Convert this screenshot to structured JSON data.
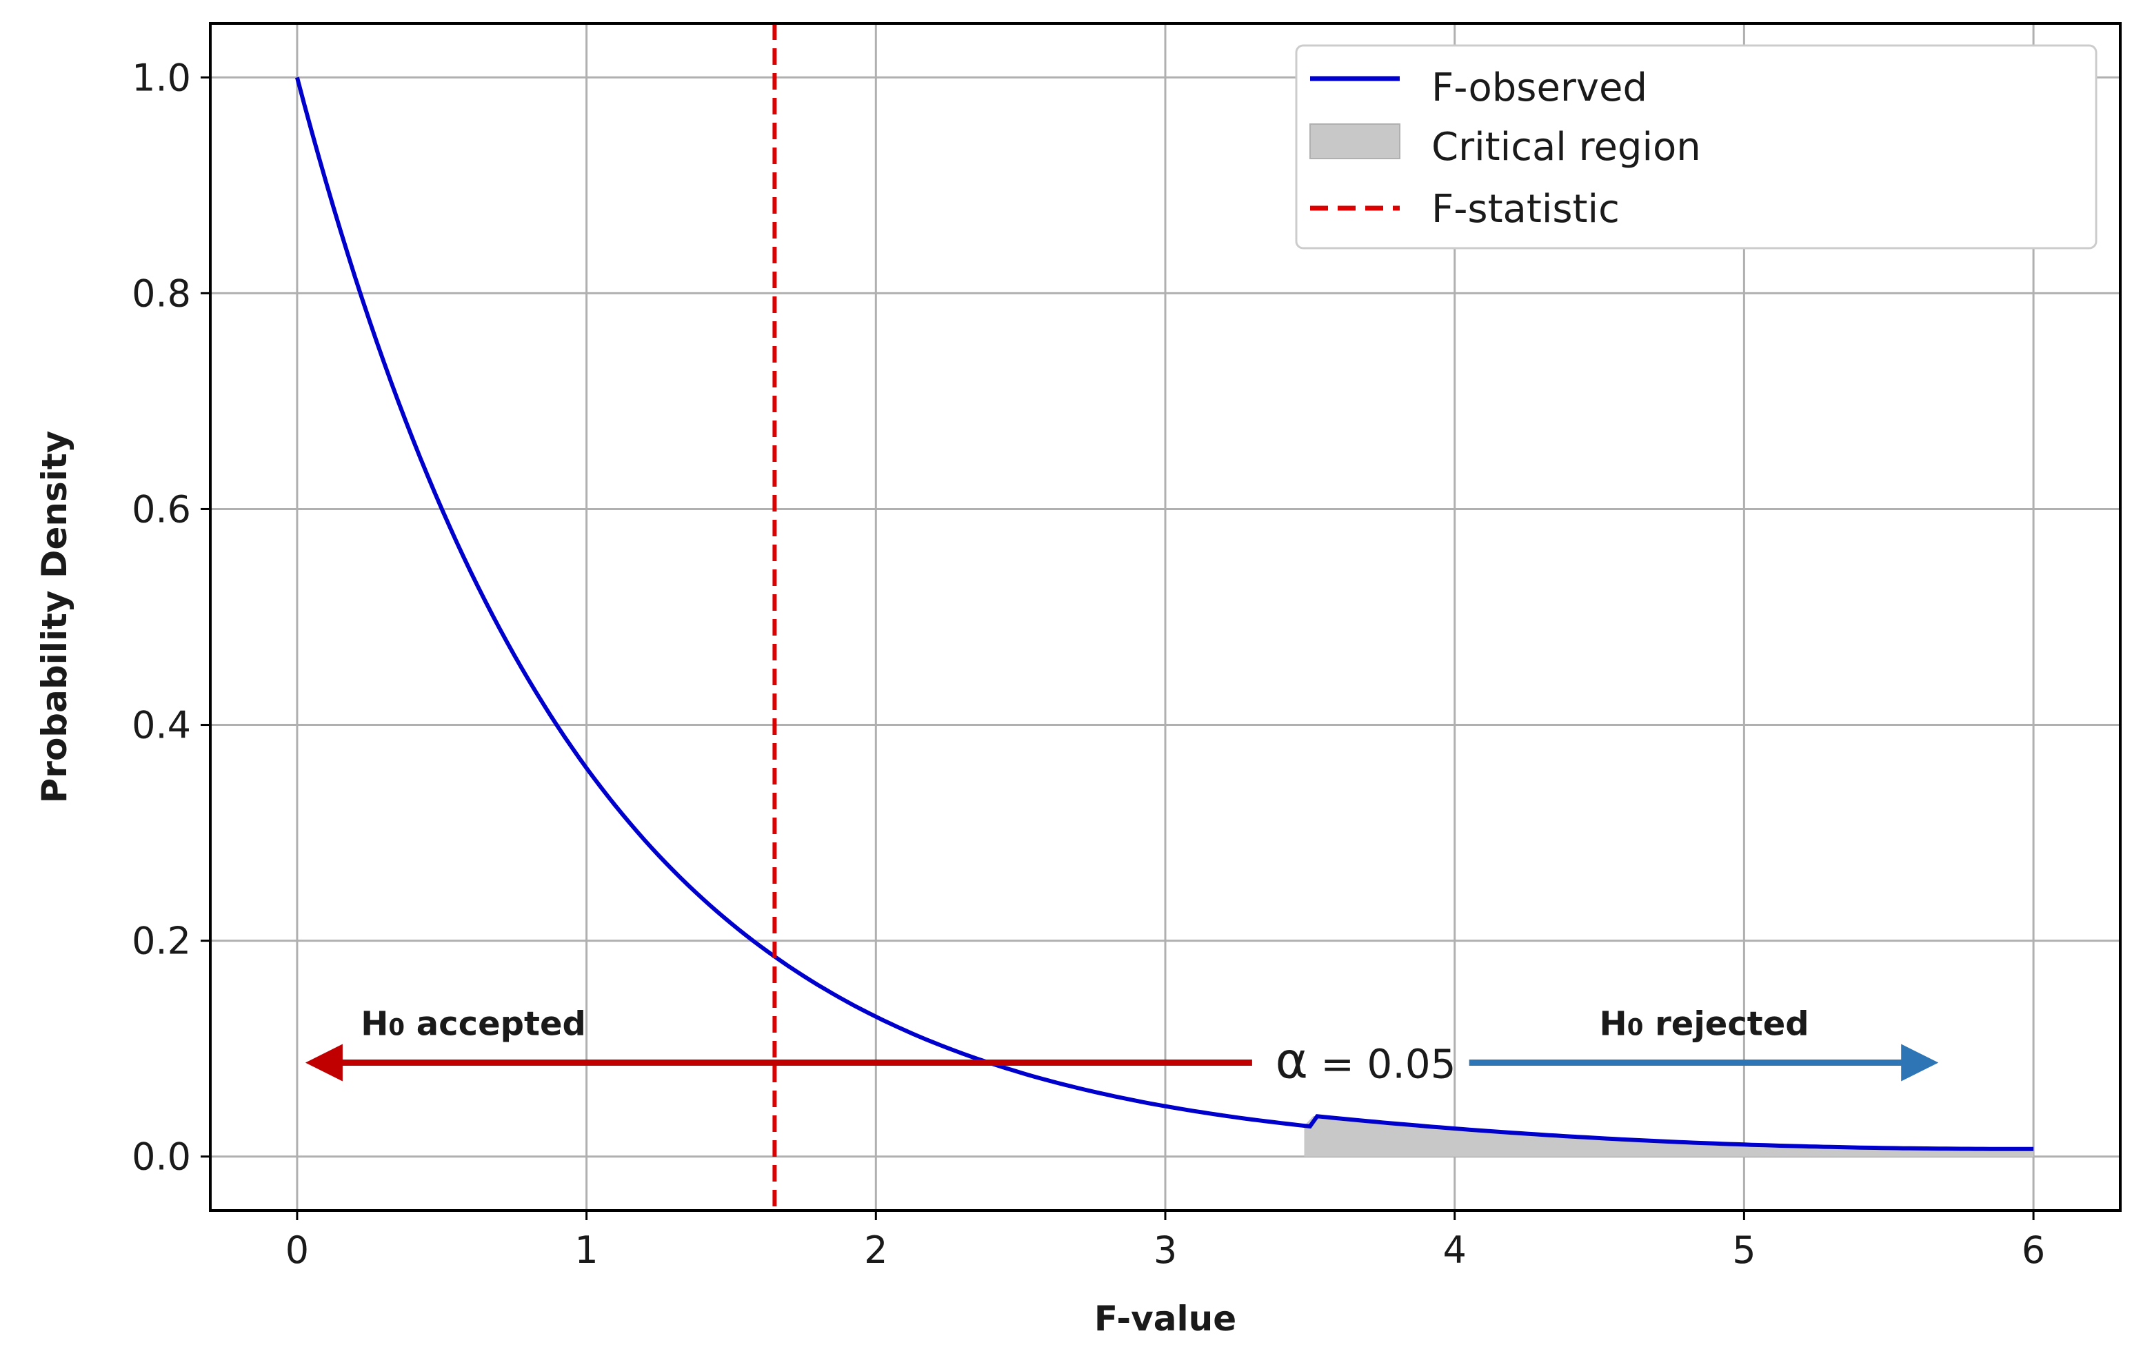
{
  "chart_data": {
    "type": "line",
    "title": "",
    "xlabel": "F-value",
    "ylabel": "Probability Density",
    "xlim": [
      -0.3,
      6.3
    ],
    "ylim": [
      -0.05,
      1.05
    ],
    "x_ticks": [
      0,
      1,
      2,
      3,
      4,
      5,
      6
    ],
    "y_ticks": [
      0.0,
      0.2,
      0.4,
      0.6,
      0.8,
      1.0
    ],
    "x_tick_labels": [
      "0",
      "1",
      "2",
      "3",
      "4",
      "5",
      "6"
    ],
    "y_tick_labels": [
      "0.0",
      "0.2",
      "0.4",
      "0.6",
      "0.8",
      "1.0"
    ],
    "grid": true,
    "legend_position": "top-right",
    "series": [
      {
        "name": "F-observed",
        "color": "#0000cc",
        "x": [
          0,
          0.25,
          0.5,
          0.75,
          1.0,
          1.25,
          1.5,
          1.65,
          2.0,
          2.5,
          3.0,
          3.5,
          4.0,
          4.5,
          5.0,
          5.5,
          6.0
        ],
        "y": [
          1.0,
          0.8,
          0.63,
          0.48,
          0.36,
          0.28,
          0.22,
          0.19,
          0.135,
          0.085,
          0.057,
          0.038,
          0.026,
          0.018,
          0.012,
          0.009,
          0.007
        ]
      }
    ],
    "critical_region": {
      "name": "Critical region",
      "x_start": 3.48,
      "x_end": 6.0,
      "color": "#c8c8c8"
    },
    "f_statistic": {
      "name": "F-statistic",
      "x": 1.65,
      "color": "#dd0000"
    },
    "annotations": {
      "accepted": {
        "text_main": "H",
        "text_sub": "0",
        "text_rest": " accepted",
        "arrow_x_from": 3.3,
        "arrow_x_to": 0.05,
        "y": 0.087,
        "color": "#c00000"
      },
      "rejected": {
        "text_main": "H",
        "text_sub": "0",
        "text_rest": " rejected",
        "arrow_x_from": 4.05,
        "arrow_x_to": 5.65,
        "y": 0.087,
        "color": "#2e75b6"
      },
      "alpha": {
        "symbol": "α",
        "text": " = 0.05",
        "x": 3.7,
        "y": 0.087
      }
    }
  }
}
